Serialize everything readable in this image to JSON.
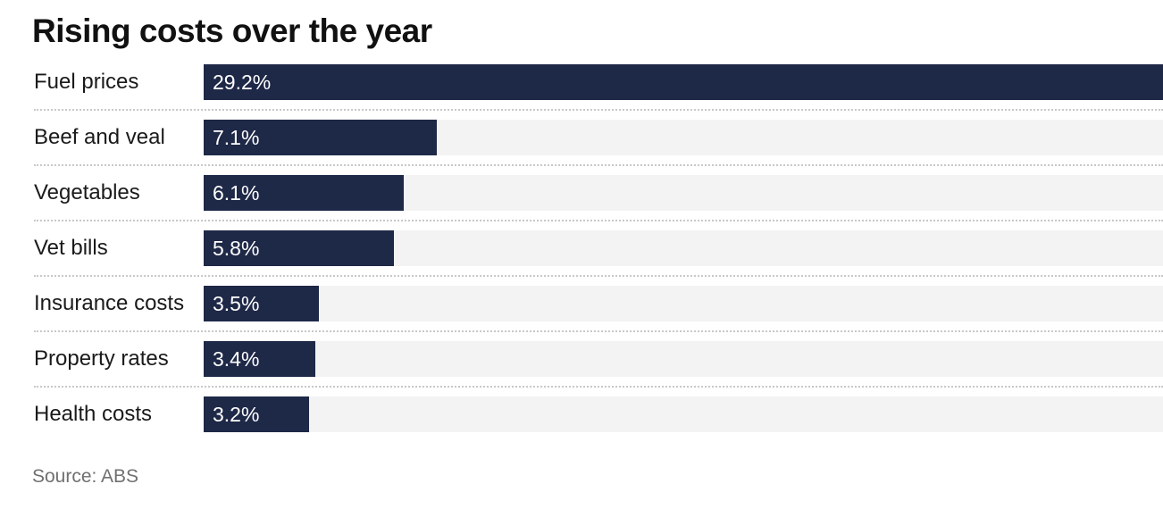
{
  "chart_data": {
    "type": "bar",
    "orientation": "horizontal",
    "title": "Rising costs over the year",
    "categories": [
      "Fuel prices",
      "Beef and veal",
      "Vegetables",
      "Vet bills",
      "Insurance costs",
      "Property rates",
      "Health costs"
    ],
    "values": [
      29.2,
      7.1,
      6.1,
      5.8,
      3.5,
      3.4,
      3.2
    ],
    "value_labels": [
      "29.2%",
      "7.1%",
      "6.1%",
      "5.8%",
      "3.5%",
      "3.4%",
      "3.2%"
    ],
    "xlim": [
      0,
      29.2
    ],
    "grid": false,
    "source": "Source: ABS"
  },
  "colors": {
    "bar": "#1e2847",
    "track": "#f3f3f3",
    "divider": "#c8c8c8"
  }
}
